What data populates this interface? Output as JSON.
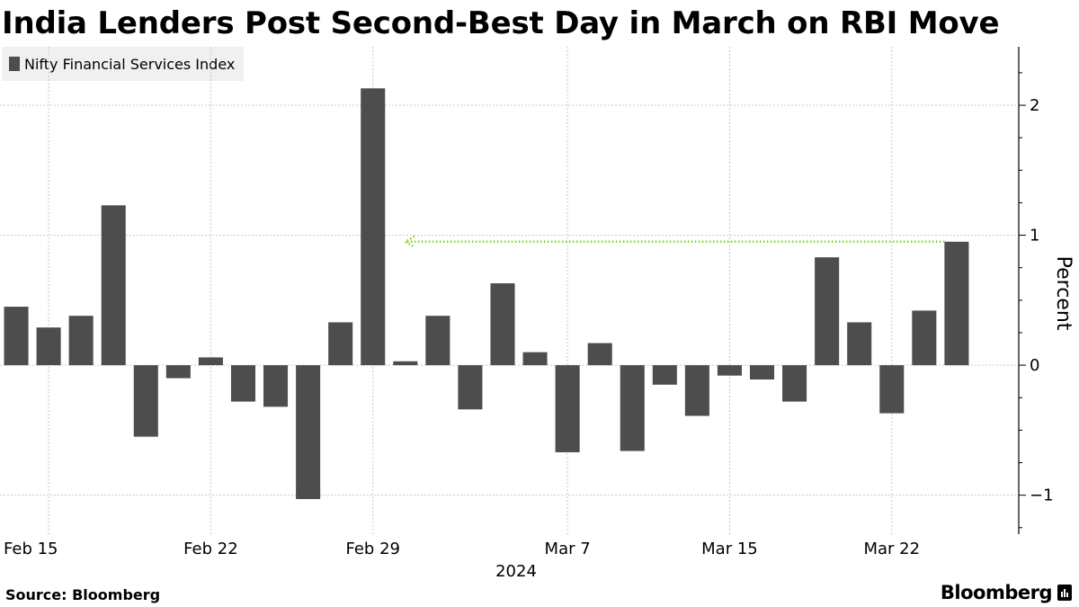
{
  "title": "India Lenders Post Second-Best Day in March on RBI Move",
  "source": "Source: Bloomberg",
  "brand": "Bloomberg",
  "colors": {
    "bar": "#4d4d4d",
    "arrow": "#7dd321",
    "grid": "#c8c8c8",
    "legend_bg": "#f0f0f0"
  },
  "chart_data": {
    "type": "bar",
    "series": [
      {
        "name": "Nifty Financial Services Index",
        "x": [
          "2024-02-14",
          "2024-02-15",
          "2024-02-16",
          "2024-02-19",
          "2024-02-20",
          "2024-02-21",
          "2024-02-22",
          "2024-02-23",
          "2024-02-26",
          "2024-02-27",
          "2024-02-28",
          "2024-02-29",
          "2024-03-01",
          "2024-03-02",
          "2024-03-04",
          "2024-03-05",
          "2024-03-06",
          "2024-03-07",
          "2024-03-11",
          "2024-03-12",
          "2024-03-13",
          "2024-03-14",
          "2024-03-15",
          "2024-03-18",
          "2024-03-19",
          "2024-03-20",
          "2024-03-21",
          "2024-03-22",
          "2024-03-26",
          "2024-03-27",
          "2024-03-28"
        ],
        "values": [
          0.45,
          0.29,
          0.38,
          1.23,
          -0.55,
          -0.1,
          0.06,
          -0.28,
          -0.32,
          -1.03,
          0.33,
          2.13,
          0.03,
          0.38,
          -0.34,
          0.63,
          0.1,
          -0.67,
          0.17,
          -0.66,
          -0.15,
          -0.39,
          -0.08,
          -0.11,
          -0.28,
          0.83,
          0.33,
          -0.37,
          0.42,
          0.95,
          null
        ]
      }
    ],
    "xlabel": "2024",
    "ylabel": "Percent",
    "x_ticks": [
      "Feb 15",
      "Feb 22",
      "Feb 29",
      "Mar 7",
      "Mar 15",
      "Mar 22"
    ],
    "y_ticks": [
      -1,
      0,
      1,
      2
    ],
    "ylim": [
      -1.3,
      2.45
    ],
    "grid": true,
    "legend_position": "top-left",
    "annotations": [
      {
        "type": "arrow",
        "from_category": "2024-03-27",
        "to_category": "2024-03-01",
        "y": 0.95,
        "color": "#7dd321",
        "style": "dotted"
      }
    ]
  }
}
